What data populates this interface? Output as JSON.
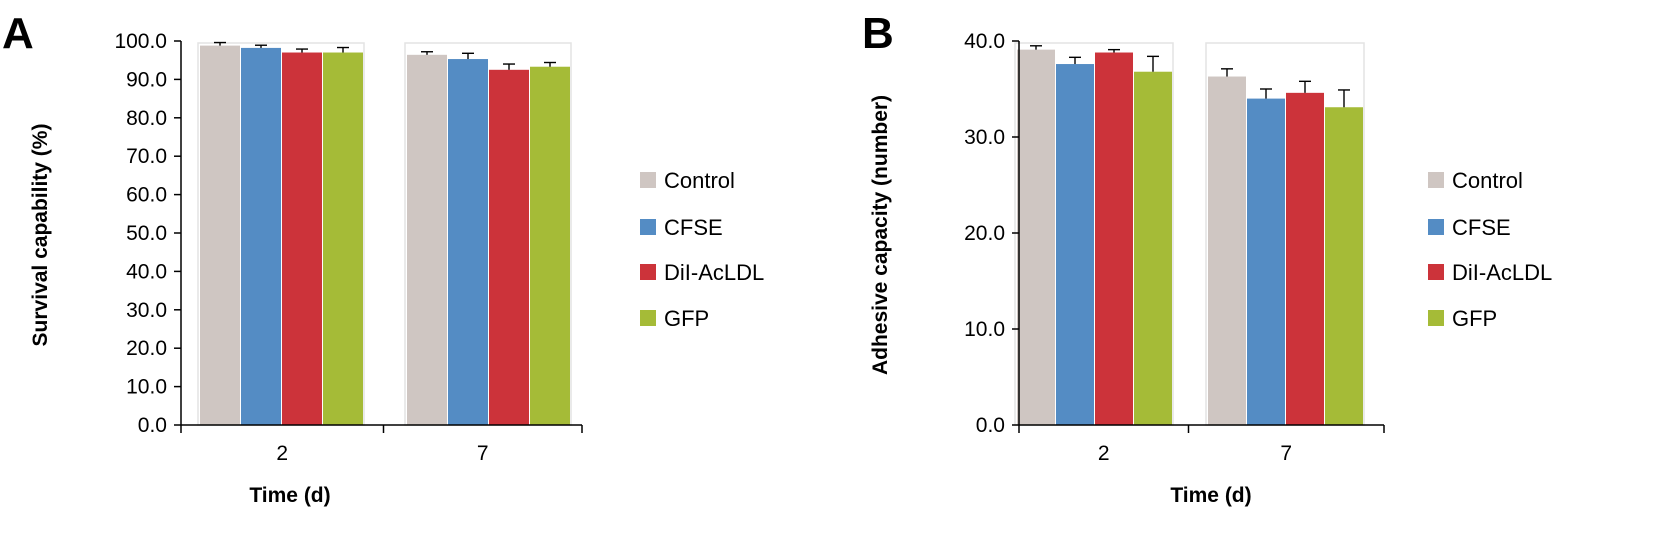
{
  "colors": {
    "Control": "#cfc6c2",
    "CFSE": "#548cc4",
    "DiI-AcLDL": "#cc333a",
    "GFP": "#a5bb37"
  },
  "chart_data": [
    {
      "type": "bar",
      "panel": "A",
      "categories": [
        "2",
        "7"
      ],
      "series": [
        {
          "name": "Control",
          "values": [
            98.8,
            96.4
          ],
          "errors": [
            0.8,
            0.8
          ]
        },
        {
          "name": "CFSE",
          "values": [
            98.2,
            95.3
          ],
          "errors": [
            0.7,
            1.5
          ]
        },
        {
          "name": "DiI-AcLDL",
          "values": [
            97.0,
            92.5
          ],
          "errors": [
            0.9,
            1.5
          ]
        },
        {
          "name": "GFP",
          "values": [
            97.0,
            93.3
          ],
          "errors": [
            1.3,
            1.1
          ]
        }
      ],
      "yticks": [
        "0.0",
        "10.0",
        "20.0",
        "30.0",
        "40.0",
        "50.0",
        "60.0",
        "70.0",
        "80.0",
        "90.0",
        "100.0"
      ],
      "xlabel": "Time (d)",
      "ylabel": "Survival capability (%)",
      "ylim": [
        0,
        100
      ],
      "legend": "right"
    },
    {
      "type": "bar",
      "panel": "B",
      "categories": [
        "2",
        "7"
      ],
      "series": [
        {
          "name": "Control",
          "values": [
            39.1,
            36.3
          ],
          "errors": [
            0.4,
            0.8
          ]
        },
        {
          "name": "CFSE",
          "values": [
            37.6,
            34.0
          ],
          "errors": [
            0.7,
            1.0
          ]
        },
        {
          "name": "DiI-AcLDL",
          "values": [
            38.8,
            34.6
          ],
          "errors": [
            0.3,
            1.2
          ]
        },
        {
          "name": "GFP",
          "values": [
            36.8,
            33.1
          ],
          "errors": [
            1.6,
            1.8
          ]
        }
      ],
      "yticks": [
        "0.0",
        "10.0",
        "20.0",
        "30.0",
        "40.0"
      ],
      "xlabel": "Time (d)",
      "ylabel": "Adhesive capacity (number)",
      "ylim": [
        0,
        40
      ],
      "legend": "right"
    }
  ]
}
